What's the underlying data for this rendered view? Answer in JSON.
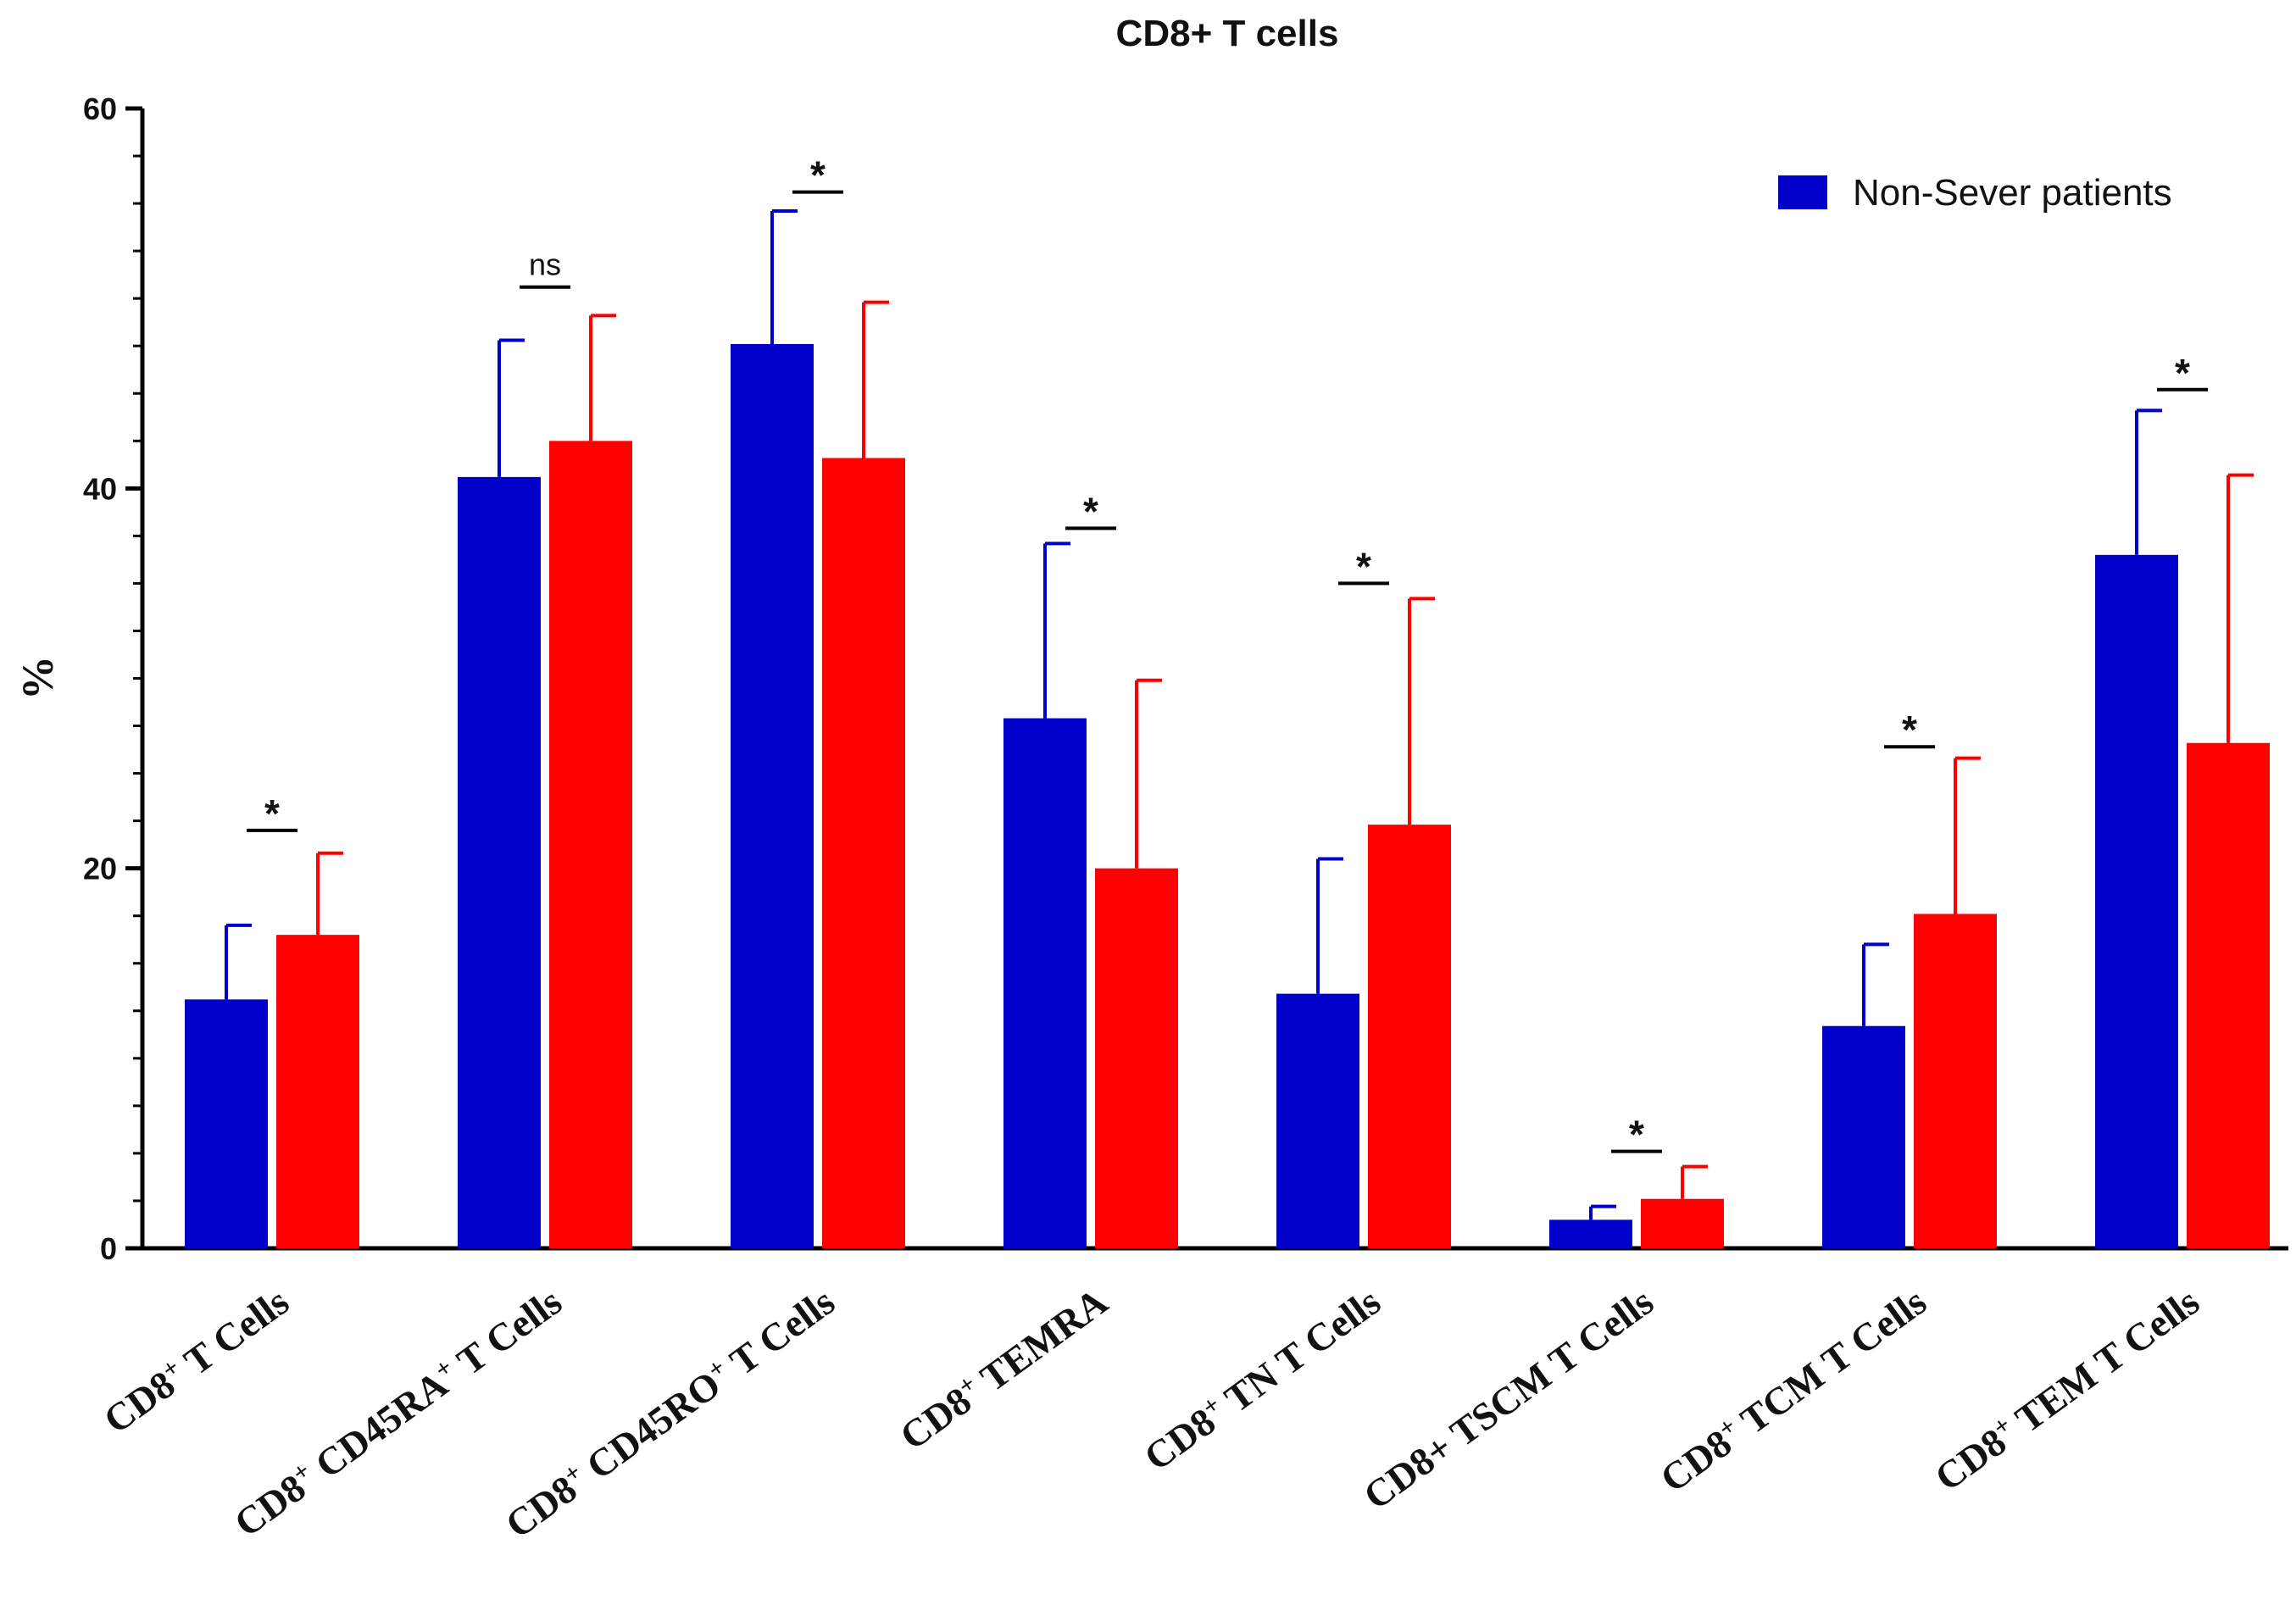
{
  "chart_data": {
    "type": "bar",
    "title": "CD8+ T cells",
    "ylabel": "%",
    "xlabel": "",
    "ylim": [
      0,
      60
    ],
    "yticks": [
      0,
      20,
      40,
      60
    ],
    "grid": false,
    "legend_position": "top-right",
    "categories": [
      {
        "base": "CD8",
        "sup": "+",
        "rest": "T Cells"
      },
      {
        "base": "CD8",
        "sup": "+",
        "rest": "CD45RA",
        "sup2": "+",
        "rest2": "T Cells"
      },
      {
        "base": "CD8",
        "sup": "+",
        "rest": "CD45RO",
        "sup2": "+",
        "rest2": "T Cells"
      },
      {
        "base": "CD8",
        "sup": "+",
        "rest": "TEMRA"
      },
      {
        "base": "CD8",
        "sup": "+",
        "rest": "TN T Cells"
      },
      {
        "base": "CD8+ TSCM T Cells"
      },
      {
        "base": "CD8",
        "sup": "+",
        "rest": "TCM T Cells"
      },
      {
        "base": "CD8",
        "sup": "+",
        "rest": "TEM T Cells"
      }
    ],
    "series": [
      {
        "name": "Non-Sever patients",
        "color": "#0000c8",
        "values": [
          13.1,
          40.6,
          47.6,
          27.9,
          13.4,
          1.5,
          11.7,
          36.5
        ],
        "errors": [
          3.9,
          7.2,
          7.0,
          9.2,
          7.1,
          0.7,
          4.3,
          7.6
        ]
      },
      {
        "name": "",
        "color": "#ff0000",
        "values": [
          16.5,
          42.5,
          41.6,
          20.0,
          22.3,
          2.6,
          17.6,
          26.6
        ],
        "errors": [
          4.3,
          6.6,
          8.2,
          9.9,
          11.9,
          1.7,
          8.2,
          14.1
        ]
      }
    ],
    "significance": [
      {
        "label": "*",
        "y": 22.0
      },
      {
        "label": "ns",
        "y": 50.6
      },
      {
        "label": "*",
        "y": 55.6
      },
      {
        "label": "*",
        "y": 37.9
      },
      {
        "label": "*",
        "y": 35.0
      },
      {
        "label": "*",
        "y": 5.1
      },
      {
        "label": "*",
        "y": 26.4
      },
      {
        "label": "*",
        "y": 45.2
      }
    ]
  }
}
